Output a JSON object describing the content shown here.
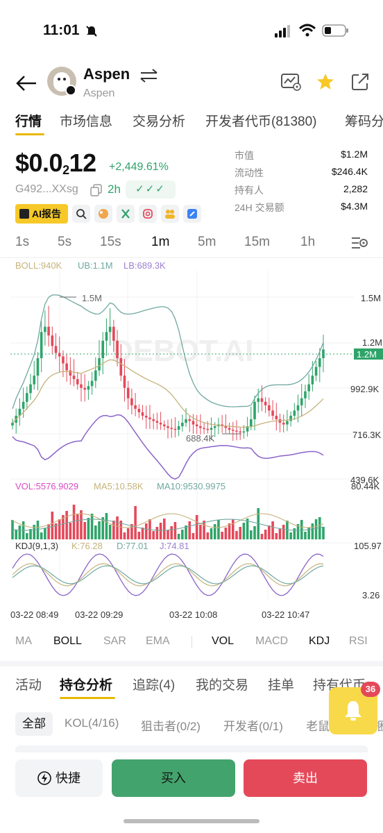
{
  "status": {
    "time": "11:01"
  },
  "header": {
    "title": "Aspen",
    "subtitle": "Aspen"
  },
  "tabs": [
    "行情",
    "市场信息",
    "交易分析",
    "开发者代币(81380)",
    "筹码分"
  ],
  "token": {
    "price_prefix": "$0.0",
    "price_sub": "2",
    "price_suffix": "12",
    "change": "+2,449.61%",
    "address": "G492...XXsg",
    "age": "2h",
    "checks": "✓✓✓",
    "ai_label": "AI报告"
  },
  "stats": [
    {
      "label": "市值",
      "value": "$1.2M"
    },
    {
      "label": "流动性",
      "value": "$246.4K"
    },
    {
      "label": "持有人",
      "value": "2,282"
    },
    {
      "label": "24H 交易额",
      "value": "$4.3M"
    }
  ],
  "intervals": [
    "1s",
    "5s",
    "15s",
    "1m",
    "5m",
    "15m",
    "1h"
  ],
  "chart_data": {
    "type": "candlestick",
    "legend": {
      "boll": "BOLL:940K",
      "ub": "UB:1.1M",
      "lb": "LB:689.3K"
    },
    "y_ticks": [
      "1.5M",
      "1.2M",
      "992.9K",
      "716.3K",
      "439.6K"
    ],
    "current_price_label": "1.2M",
    "annotations": {
      "high": "1.5M",
      "low": "688.4K"
    },
    "watermark": "DEBOT.AI",
    "volume_legend": {
      "vol": "VOL:5576.9029",
      "ma5": "MA5:10.58K",
      "ma10": "MA10:9530.9975"
    },
    "volume_top_label": "80.44K",
    "kdj_legend": {
      "name": "KDJ(9,1,3)",
      "k": "K:76.28",
      "d": "D:77.01",
      "j": "J:74.81"
    },
    "kdj_labels": {
      "top": "105.97",
      "bottom": "3.26"
    },
    "x_labels": [
      "03-22 08:49",
      "03-22 09:29",
      "03-22 10:08",
      "03-22 10:47"
    ],
    "price_close": [
      780,
      820,
      860,
      900,
      950,
      1000,
      1050,
      1150,
      1300,
      1330,
      1280,
      1220,
      1180,
      1160,
      1120,
      1080,
      1050,
      1030,
      1000,
      980,
      970,
      990,
      1020,
      1080,
      1150,
      1250,
      1300,
      1330,
      1250,
      1150,
      1050,
      980,
      920,
      880,
      860,
      840,
      820,
      810,
      800,
      790,
      780,
      770,
      760,
      750,
      745,
      740,
      760,
      780,
      800,
      790,
      770,
      760,
      750,
      745,
      740,
      750,
      760,
      770,
      760,
      750,
      740,
      735,
      730,
      725,
      730,
      760,
      800,
      900,
      920,
      900,
      880,
      850,
      820,
      800,
      780,
      770,
      790,
      820,
      850,
      880,
      920,
      960,
      1000,
      1050,
      1100,
      1150,
      1200
    ]
  },
  "indicator_tabs": [
    "MA",
    "BOLL",
    "SAR",
    "EMA",
    "VOL",
    "MACD",
    "KDJ",
    "RSI"
  ],
  "section_tabs": [
    "活动",
    "持仓分析",
    "追踪(4)",
    "我的交易",
    "挂单",
    "持有代币"
  ],
  "filters": [
    "全部",
    "KOL(4/16)",
    "狙击者(0/2)",
    "开发者(0/1)",
    "老鼠仓",
    "捆"
  ],
  "bell_count": "36",
  "actions": {
    "quick": "快捷",
    "buy": "买入",
    "sell": "卖出"
  }
}
